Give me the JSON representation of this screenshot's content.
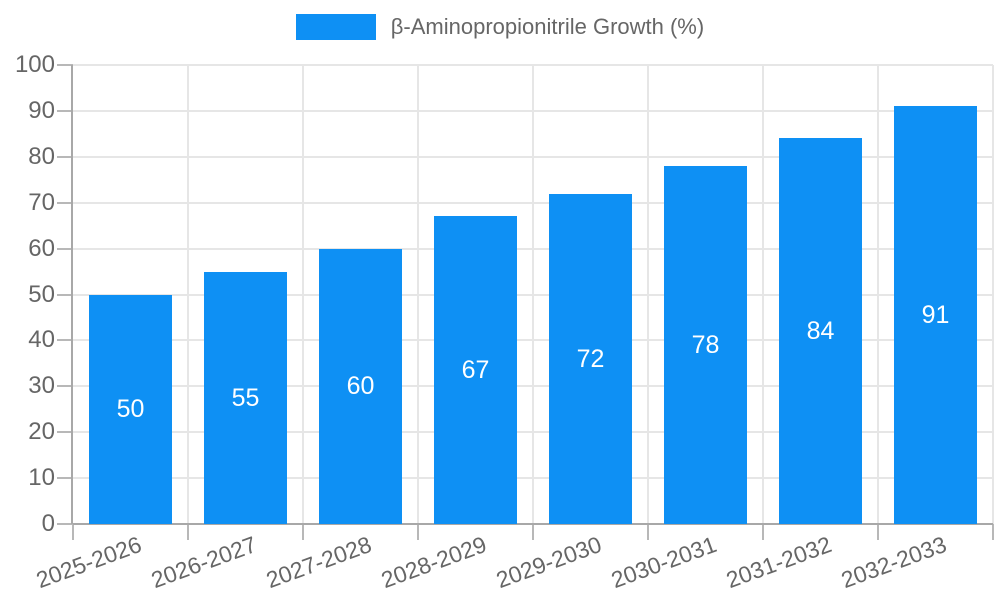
{
  "legend": {
    "label": "β-Aminopropionitrile Growth (%)"
  },
  "colors": {
    "bar": "#0e90f4",
    "text": "#666666",
    "bar_label": "#ffffff",
    "grid": "#e6e6e6",
    "axis": "#a8a8a8",
    "tick": "#b8b8b8",
    "background": "#ffffff"
  },
  "chart_data": {
    "type": "bar",
    "title": "β-Aminopropionitrile Growth (%)",
    "categories": [
      "2025-2026",
      "2026-2027",
      "2027-2028",
      "2028-2029",
      "2029-2030",
      "2030-2031",
      "2031-2032",
      "2032-2033"
    ],
    "values": [
      50,
      55,
      60,
      67,
      72,
      78,
      84,
      91
    ],
    "xlabel": "",
    "ylabel": "",
    "ylim": [
      0,
      100
    ],
    "ytick_step": 10,
    "ytick_labels": [
      "0",
      "10",
      "20",
      "30",
      "40",
      "50",
      "60",
      "70",
      "80",
      "90",
      "100"
    ],
    "grid": true,
    "legend_position": "top",
    "bar_labels_shown": true,
    "bar_label_position": "center"
  }
}
